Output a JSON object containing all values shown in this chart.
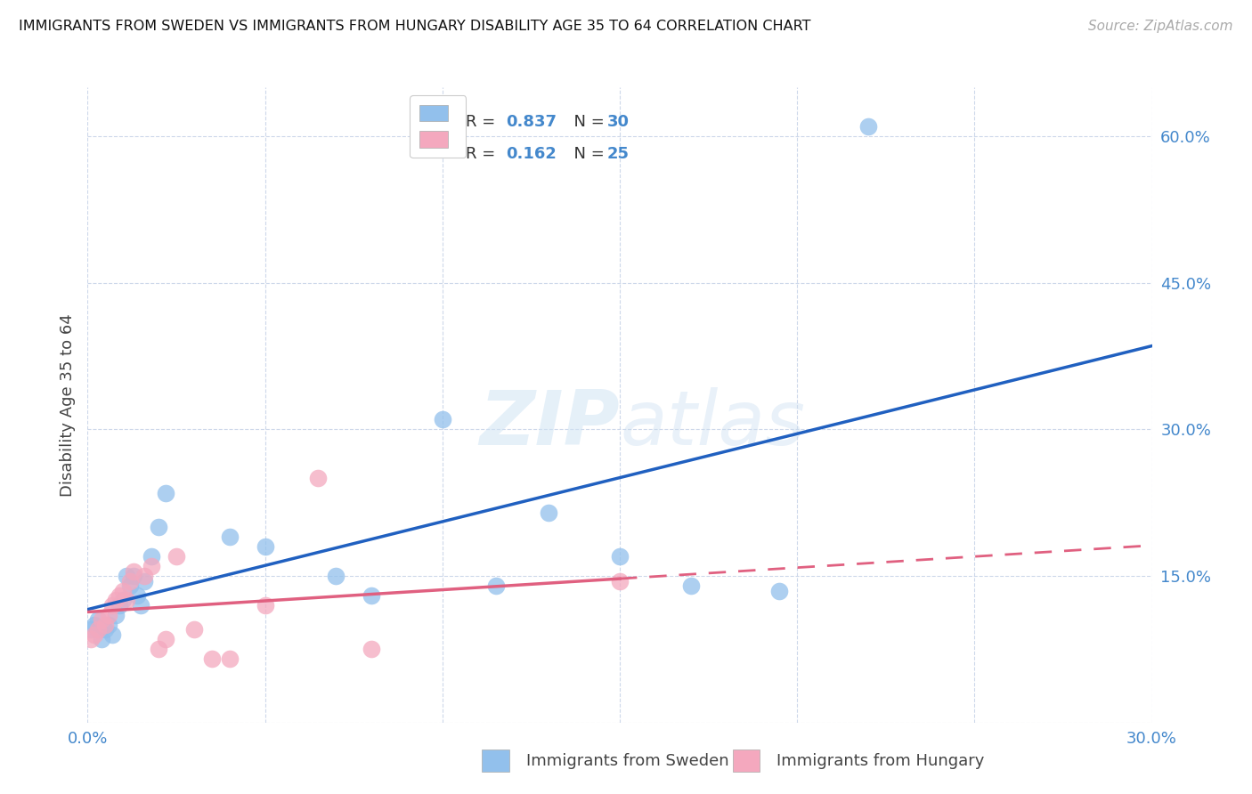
{
  "title": "IMMIGRANTS FROM SWEDEN VS IMMIGRANTS FROM HUNGARY DISABILITY AGE 35 TO 64 CORRELATION CHART",
  "source": "Source: ZipAtlas.com",
  "ylabel": "Disability Age 35 to 64",
  "xlim": [
    0.0,
    0.3
  ],
  "ylim": [
    0.0,
    0.65
  ],
  "xticks": [
    0.0,
    0.05,
    0.1,
    0.15,
    0.2,
    0.25,
    0.3
  ],
  "yticks": [
    0.0,
    0.15,
    0.3,
    0.45,
    0.6
  ],
  "sweden_color": "#92c0ec",
  "hungary_color": "#f4a8be",
  "sweden_line_color": "#2060c0",
  "hungary_line_color": "#e06080",
  "legend_r_sweden": "0.837",
  "legend_n_sweden": "30",
  "legend_r_hungary": "0.162",
  "legend_n_hungary": "25",
  "watermark_zip": "ZIP",
  "watermark_atlas": "atlas",
  "sweden_x": [
    0.001,
    0.002,
    0.003,
    0.004,
    0.005,
    0.006,
    0.007,
    0.008,
    0.009,
    0.01,
    0.011,
    0.012,
    0.013,
    0.014,
    0.015,
    0.016,
    0.018,
    0.02,
    0.022,
    0.04,
    0.05,
    0.07,
    0.08,
    0.1,
    0.115,
    0.13,
    0.15,
    0.17,
    0.195,
    0.22
  ],
  "sweden_y": [
    0.095,
    0.1,
    0.105,
    0.085,
    0.095,
    0.1,
    0.09,
    0.11,
    0.12,
    0.125,
    0.15,
    0.14,
    0.15,
    0.13,
    0.12,
    0.145,
    0.17,
    0.2,
    0.235,
    0.19,
    0.18,
    0.15,
    0.13,
    0.31,
    0.14,
    0.215,
    0.17,
    0.14,
    0.135,
    0.61
  ],
  "hungary_x": [
    0.001,
    0.002,
    0.003,
    0.004,
    0.005,
    0.006,
    0.007,
    0.008,
    0.009,
    0.01,
    0.011,
    0.012,
    0.013,
    0.016,
    0.018,
    0.02,
    0.022,
    0.025,
    0.03,
    0.035,
    0.04,
    0.05,
    0.065,
    0.08,
    0.15
  ],
  "hungary_y": [
    0.085,
    0.09,
    0.095,
    0.105,
    0.1,
    0.11,
    0.12,
    0.125,
    0.13,
    0.135,
    0.125,
    0.145,
    0.155,
    0.15,
    0.16,
    0.075,
    0.085,
    0.17,
    0.095,
    0.065,
    0.065,
    0.12,
    0.25,
    0.075,
    0.145
  ]
}
